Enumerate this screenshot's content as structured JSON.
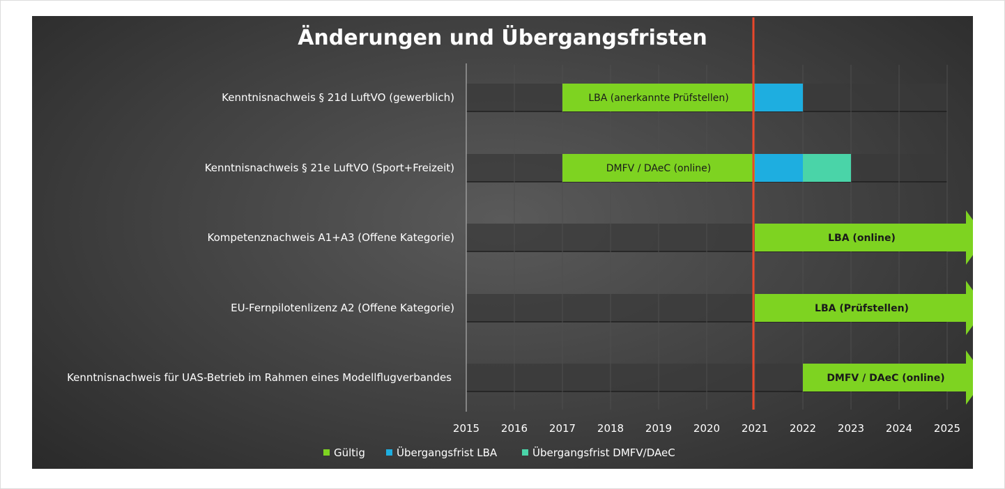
{
  "colors": {
    "gueltig": "#7ed321",
    "uebergang_lba": "#1eaee0",
    "uebergang_dmfv": "#4ad4a8",
    "cutoff_line": "#e8472b",
    "row_band": "#3a3a3a"
  },
  "chart_data": {
    "type": "bar",
    "orientation": "horizontal-gantt",
    "title": "Änderungen und Übergangsfristen",
    "xlim": [
      2015,
      2025
    ],
    "x_ticks": [
      "2015",
      "2016",
      "2017",
      "2018",
      "2019",
      "2020",
      "2021",
      "2022",
      "2023",
      "2024",
      "2025"
    ],
    "reference_line": 2021,
    "legend_position": "bottom",
    "series": [
      {
        "key": "gueltig",
        "name": "Gültig",
        "color": "#7ed321"
      },
      {
        "key": "uebergang_lba",
        "name": "Übergangsfrist LBA",
        "color": "#1eaee0"
      },
      {
        "key": "uebergang_dmfv",
        "name": "Übergangsfrist DMFV/DAeC",
        "color": "#4ad4a8"
      }
    ],
    "categories": [
      {
        "label": "Kenntnisnachweis § 21d LuftVO (gewerblich)",
        "segments": [
          {
            "series": "gueltig",
            "start": 2017,
            "end": 2021,
            "label": "LBA (anerkannte Prüfstellen)"
          },
          {
            "series": "uebergang_lba",
            "start": 2021,
            "end": 2022,
            "label": ""
          }
        ]
      },
      {
        "label": "Kenntnisnachweis § 21e LuftVO (Sport+Freizeit)",
        "segments": [
          {
            "series": "gueltig",
            "start": 2017,
            "end": 2021,
            "label": "DMFV / DAeC (online)"
          },
          {
            "series": "uebergang_lba",
            "start": 2021,
            "end": 2022,
            "label": ""
          },
          {
            "series": "uebergang_dmfv",
            "start": 2022,
            "end": 2023,
            "label": ""
          }
        ]
      },
      {
        "label": "Kompetenznachweis A1+A3 (Offene Kategorie)",
        "segments": [
          {
            "series": "gueltig",
            "start": 2021,
            "end": null,
            "open_ended": true,
            "label": "LBA (online)"
          }
        ]
      },
      {
        "label": "EU-Fernpilotenlizenz A2 (Offene Kategorie)",
        "segments": [
          {
            "series": "gueltig",
            "start": 2021,
            "end": null,
            "open_ended": true,
            "label": "LBA (Prüfstellen)"
          }
        ]
      },
      {
        "label": "Kenntnisnachweis für UAS-Betrieb im Rahmen eines Modellflugverbandes",
        "segments": [
          {
            "series": "gueltig",
            "start": 2022,
            "end": null,
            "open_ended": true,
            "label": "DMFV / DAeC (online)"
          }
        ]
      }
    ]
  }
}
